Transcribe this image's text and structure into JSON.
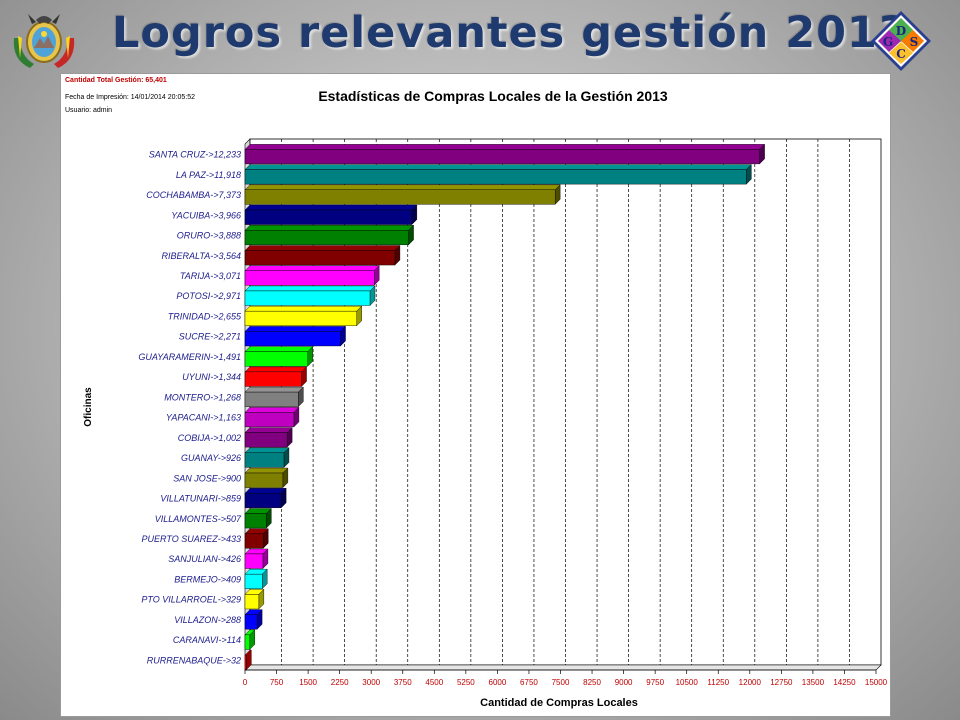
{
  "slide": {
    "title": "Logros relevantes gestión 2013"
  },
  "logo": {
    "letters": [
      "D",
      "S",
      "C",
      "G"
    ]
  },
  "report": {
    "total_line": "Cantidad Total Gestión: 65,401",
    "print_date_line": "Fecha de Impresión: 14/01/2014 20:05:52",
    "user_line": "Usuario: admin"
  },
  "chart_data": {
    "type": "bar",
    "orientation": "horizontal",
    "title": "Estadísticas de Compras Locales de la Gestión 2013",
    "xlabel": "Cantidad de Compras Locales",
    "ylabel": "Oficinas",
    "xlim": [
      0,
      15000
    ],
    "xticks": [
      0,
      750,
      1500,
      2250,
      3000,
      3750,
      4500,
      5250,
      6000,
      6750,
      7500,
      8250,
      9000,
      9750,
      10500,
      11250,
      12000,
      12750,
      13500,
      14250,
      15000
    ],
    "grid": "vertical dashed",
    "categories": [
      "SANTA CRUZ->12,233",
      "LA PAZ->11,918",
      "COCHABAMBA->7,373",
      "YACUIBA->3,966",
      "ORURO->3,888",
      "RIBERALTA->3,564",
      "TARIJA->3,071",
      "POTOSI->2,971",
      "TRINIDAD->2,655",
      "SUCRE->2,271",
      "GUAYARAMERIN->1,491",
      "UYUNI->1,344",
      "MONTERO->1,268",
      "YAPACANI->1,163",
      "COBIJA->1,002",
      "GUANAY->926",
      "SAN JOSE->900",
      "VILLATUNARI->859",
      "VILLAMONTES->507",
      "PUERTO SUAREZ->433",
      "SANJULIAN->426",
      "BERMEJO->409",
      "PTO VILLARROEL->329",
      "VILLAZON->288",
      "CARANAVI->114",
      "RURRENABAQUE->32"
    ],
    "values": [
      12233,
      11918,
      7373,
      3966,
      3888,
      3564,
      3071,
      2971,
      2655,
      2271,
      1491,
      1344,
      1268,
      1163,
      1002,
      926,
      900,
      859,
      507,
      433,
      426,
      409,
      329,
      288,
      114,
      32
    ],
    "colors": [
      "#800080",
      "#008080",
      "#808000",
      "#000080",
      "#008000",
      "#800000",
      "#ff00ff",
      "#00ffff",
      "#ffff00",
      "#0000ff",
      "#00ff00",
      "#ff0000",
      "#808080",
      "#c000c0",
      "#800080",
      "#008080",
      "#808000",
      "#000080",
      "#008000",
      "#800000",
      "#ff00ff",
      "#00ffff",
      "#ffff00",
      "#0000ff",
      "#00ff00",
      "#ff0000"
    ]
  }
}
